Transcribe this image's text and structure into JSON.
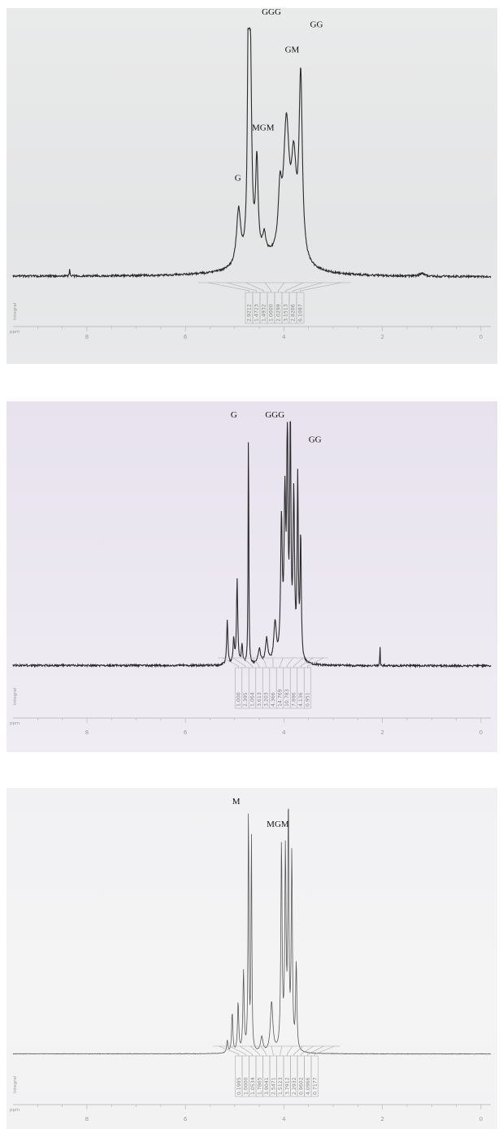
{
  "chart_data": [
    {
      "type": "line",
      "xlabel": "ppm",
      "integral_label": "Integral",
      "xlim": [
        9.5,
        -0.2
      ],
      "x_ticks": [
        "8",
        "6",
        "4",
        "2",
        "0"
      ],
      "line_color": "#2a2a2a",
      "baseline": {
        "left": 0.045,
        "right": 0.025
      },
      "peaks": [
        {
          "x": 8.35,
          "h": 0.035,
          "w": 0.006
        },
        {
          "x": 4.92,
          "h": 0.22,
          "w": 0.05
        },
        {
          "x": 4.72,
          "h": 0.95,
          "w": 0.022
        },
        {
          "x": 4.68,
          "h": 0.72,
          "w": 0.03
        },
        {
          "x": 4.55,
          "h": 0.38,
          "w": 0.03
        },
        {
          "x": 4.4,
          "h": 0.08,
          "w": 0.04
        },
        {
          "x": 4.08,
          "h": 0.22,
          "w": 0.04
        },
        {
          "x": 3.95,
          "h": 0.52,
          "w": 0.07
        },
        {
          "x": 3.8,
          "h": 0.35,
          "w": 0.06
        },
        {
          "x": 3.66,
          "h": 0.72,
          "w": 0.04
        },
        {
          "x": 4.3,
          "h": 0.06,
          "w": 0.6
        },
        {
          "x": 1.2,
          "h": 0.012,
          "w": 0.05
        }
      ],
      "labels": [
        {
          "text": "GGG",
          "x": 4.45,
          "y": 1.02
        },
        {
          "text": "GG",
          "x": 3.47,
          "y": 0.97
        },
        {
          "text": "GM",
          "x": 3.98,
          "y": 0.87
        },
        {
          "text": "MGM",
          "x": 4.65,
          "y": 0.56
        },
        {
          "text": "G",
          "x": 5.0,
          "y": 0.36
        }
      ],
      "integrals": [
        "2.9212",
        "1.4723",
        "1.4932",
        "1.0000",
        "2.0299",
        "3.1513",
        "2.8206",
        "6.1087"
      ]
    },
    {
      "type": "line",
      "xlabel": "ppm",
      "integral_label": "Integral",
      "xlim": [
        9.5,
        -0.2
      ],
      "x_ticks": [
        "8",
        "6",
        "4",
        "2",
        "0"
      ],
      "line_color": "#2a2a2a",
      "baseline": {
        "left": 0.045,
        "right": 0.03
      },
      "peaks": [
        {
          "x": 5.15,
          "h": 0.18,
          "w": 0.015
        },
        {
          "x": 5.02,
          "h": 0.1,
          "w": 0.015
        },
        {
          "x": 4.95,
          "h": 0.34,
          "w": 0.015
        },
        {
          "x": 4.85,
          "h": 0.08,
          "w": 0.015
        },
        {
          "x": 4.72,
          "h": 1.0,
          "w": 0.008
        },
        {
          "x": 4.5,
          "h": 0.06,
          "w": 0.03
        },
        {
          "x": 4.35,
          "h": 0.1,
          "w": 0.03
        },
        {
          "x": 4.18,
          "h": 0.16,
          "w": 0.03
        },
        {
          "x": 4.05,
          "h": 0.55,
          "w": 0.02
        },
        {
          "x": 3.98,
          "h": 0.62,
          "w": 0.02
        },
        {
          "x": 3.93,
          "h": 0.98,
          "w": 0.014
        },
        {
          "x": 3.87,
          "h": 0.99,
          "w": 0.014
        },
        {
          "x": 3.8,
          "h": 0.65,
          "w": 0.018
        },
        {
          "x": 3.72,
          "h": 0.72,
          "w": 0.014
        },
        {
          "x": 3.66,
          "h": 0.5,
          "w": 0.014
        },
        {
          "x": 2.05,
          "h": 0.11,
          "w": 0.004
        }
      ],
      "labels": [
        {
          "text": "G",
          "x": 5.08,
          "y": 0.98
        },
        {
          "text": "GGG",
          "x": 4.38,
          "y": 0.98
        },
        {
          "text": "GG",
          "x": 3.5,
          "y": 0.88
        }
      ],
      "integrals": [
        "1.000",
        "2.395",
        "1.064",
        "3.613",
        "3.203",
        "4.366",
        "14.769",
        "10.783",
        "7.886",
        "4.136",
        "0.951"
      ]
    },
    {
      "type": "line",
      "xlabel": "ppm",
      "integral_label": "Integral",
      "xlim": [
        9.5,
        -0.2
      ],
      "x_ticks": [
        "8",
        "6",
        "4",
        "2",
        "0"
      ],
      "line_color": "#5a5a5a",
      "baseline": {
        "left": 0.04,
        "right": 0.035
      },
      "peaks": [
        {
          "x": 5.15,
          "h": 0.05,
          "w": 0.015
        },
        {
          "x": 5.05,
          "h": 0.16,
          "w": 0.015
        },
        {
          "x": 4.93,
          "h": 0.2,
          "w": 0.015
        },
        {
          "x": 4.82,
          "h": 0.32,
          "w": 0.015
        },
        {
          "x": 4.72,
          "h": 1.0,
          "w": 0.01
        },
        {
          "x": 4.66,
          "h": 0.88,
          "w": 0.01
        },
        {
          "x": 4.45,
          "h": 0.06,
          "w": 0.03
        },
        {
          "x": 4.25,
          "h": 0.2,
          "w": 0.03
        },
        {
          "x": 4.05,
          "h": 0.82,
          "w": 0.015
        },
        {
          "x": 3.97,
          "h": 0.78,
          "w": 0.015
        },
        {
          "x": 3.91,
          "h": 1.0,
          "w": 0.012
        },
        {
          "x": 3.84,
          "h": 0.78,
          "w": 0.014
        },
        {
          "x": 3.75,
          "h": 0.35,
          "w": 0.015
        }
      ],
      "labels": [
        {
          "text": "M",
          "x": 5.05,
          "y": 0.98
        },
        {
          "text": "MGM",
          "x": 4.35,
          "y": 0.89
        }
      ],
      "integrals": [
        "0.1985",
        "1.0000",
        "1.0534",
        "1.7865",
        "3.9041",
        "2.5471",
        "1.5123",
        "3.7912",
        "2.2932",
        "0.9602",
        "4.0966",
        "0.7177"
      ]
    }
  ]
}
